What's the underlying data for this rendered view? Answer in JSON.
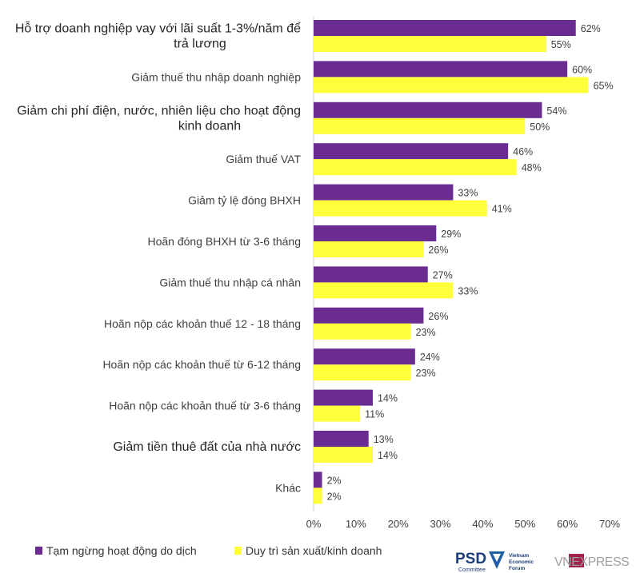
{
  "chart_data": {
    "type": "bar",
    "orientation": "horizontal",
    "categories": [
      [
        "Hỗ trợ doanh nghiệp vay với lãi suất 1-3%/năm để",
        "trả lương"
      ],
      [
        "Giảm thuế thu nhập doanh nghiệp"
      ],
      [
        "Giảm chi phí điện, nước, nhiên liệu cho hoạt động",
        "kinh doanh"
      ],
      [
        "Giảm thuế VAT"
      ],
      [
        "Giảm tỷ lệ đóng BHXH"
      ],
      [
        "Hoãn đóng BHXH từ 3-6 tháng"
      ],
      [
        "Giảm thuế thu nhập cá nhân"
      ],
      [
        "Hoãn nộp các khoản thuế 12 - 18 tháng"
      ],
      [
        "Hoãn nộp các khoản thuế từ 6-12 tháng"
      ],
      [
        "Hoãn nộp các khoản thuế từ 3-6 tháng"
      ],
      [
        "Giảm tiền thuê đất của nhà nước"
      ],
      [
        "Khác"
      ]
    ],
    "series": [
      {
        "name": "Tạm ngừng hoạt động do dịch",
        "color": "#6a2c91",
        "values": [
          62,
          60,
          54,
          46,
          33,
          29,
          27,
          26,
          24,
          14,
          13,
          2
        ],
        "labels": [
          "62%",
          "60%",
          "54%",
          "46%",
          "33%",
          "29%",
          "27%",
          "26%",
          "24%",
          "14%",
          "13%",
          "2%"
        ]
      },
      {
        "name": "Duy trì sản xuất/kinh doanh",
        "color": "#ffff3c",
        "values": [
          55,
          65,
          50,
          48,
          41,
          26,
          33,
          23,
          23,
          11,
          14,
          2
        ],
        "labels": [
          "55%",
          "65%",
          "50%",
          "48%",
          "41%",
          "26%",
          "33%",
          "23%",
          "23%",
          "11%",
          "14%",
          "2%"
        ]
      }
    ],
    "x_ticks": [
      "0%",
      "10%",
      "20%",
      "30%",
      "40%",
      "50%",
      "60%",
      "70%"
    ],
    "xlim": [
      0,
      70
    ],
    "grid": false,
    "legend_position": "bottom-left"
  },
  "logos": {
    "psd": "PSD",
    "psd_sub": "Committee",
    "vef": [
      "Vietnam",
      "Economic",
      "Forum"
    ],
    "vnexpress": "VNEXPRESS"
  }
}
